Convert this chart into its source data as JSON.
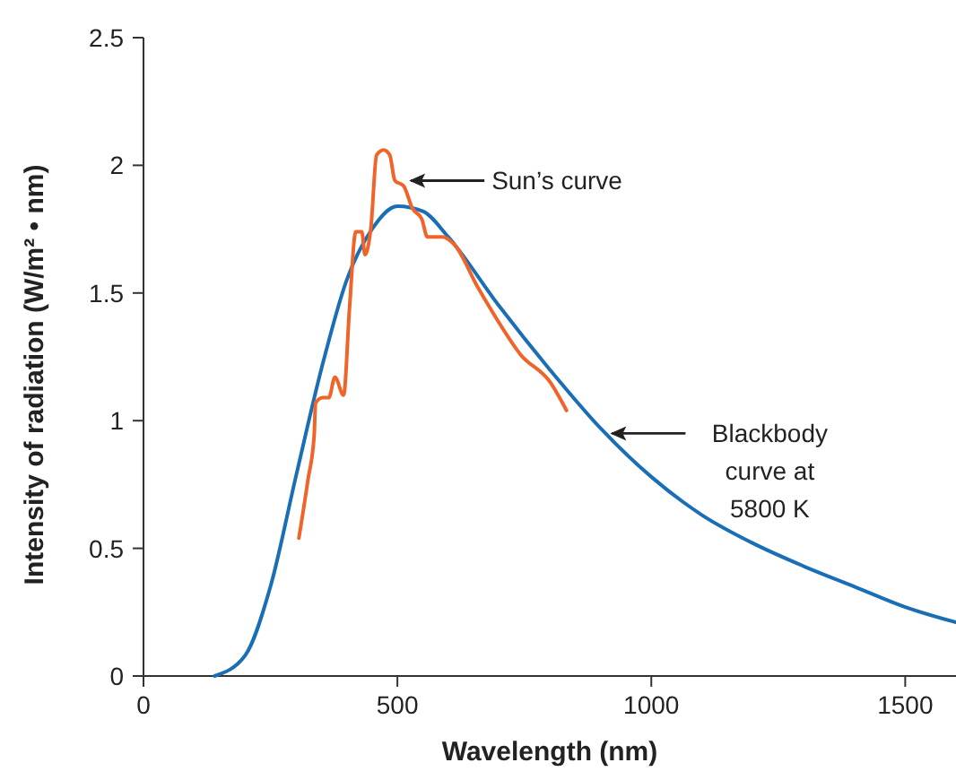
{
  "chart_data": {
    "type": "line",
    "xlabel": "Wavelength (nm)",
    "ylabel": "Intensity of radiation (W/m² • nm)",
    "xlim": [
      0,
      1600
    ],
    "xticks": [
      0,
      500,
      1000,
      1500
    ],
    "ylim": [
      0,
      2.5
    ],
    "yticks": [
      0,
      0.5,
      1,
      1.5,
      2,
      2.5
    ],
    "grid": false,
    "marker": "none",
    "line_style": "solid",
    "series": [
      {
        "color": "#1a6eb5",
        "x": [
          140,
          200,
          250,
          300,
          350,
          400,
          450,
          500,
          550,
          600,
          700,
          800,
          900,
          1000,
          1100,
          1200,
          1300,
          1400,
          1500,
          1600
        ],
        "values": [
          0,
          0.08,
          0.35,
          0.78,
          1.2,
          1.55,
          1.75,
          1.84,
          1.82,
          1.72,
          1.45,
          1.2,
          0.97,
          0.78,
          0.63,
          0.52,
          0.43,
          0.35,
          0.27,
          0.21
        ]
      },
      {
        "color": "#f0642a",
        "x": [
          306,
          324,
          336,
          339,
          353,
          365,
          377,
          394,
          406,
          418,
          430,
          436,
          448,
          459,
          473,
          485,
          495,
          512,
          530,
          548,
          559,
          589,
          612,
          659,
          695,
          742,
          801,
          833
        ],
        "values": [
          0.54,
          0.77,
          0.94,
          1.07,
          1.09,
          1.09,
          1.17,
          1.1,
          1.45,
          1.74,
          1.74,
          1.65,
          1.76,
          2.04,
          2.06,
          2.04,
          1.94,
          1.92,
          1.83,
          1.79,
          1.72,
          1.72,
          1.69,
          1.52,
          1.4,
          1.26,
          1.15,
          1.04
        ]
      }
    ],
    "annotations": [
      {
        "text": "Sun’s curve",
        "x": 523,
        "y": 1.94
      },
      {
        "text": "Blackbody curve at 5800 K",
        "x": 919,
        "y": 0.95
      }
    ]
  }
}
